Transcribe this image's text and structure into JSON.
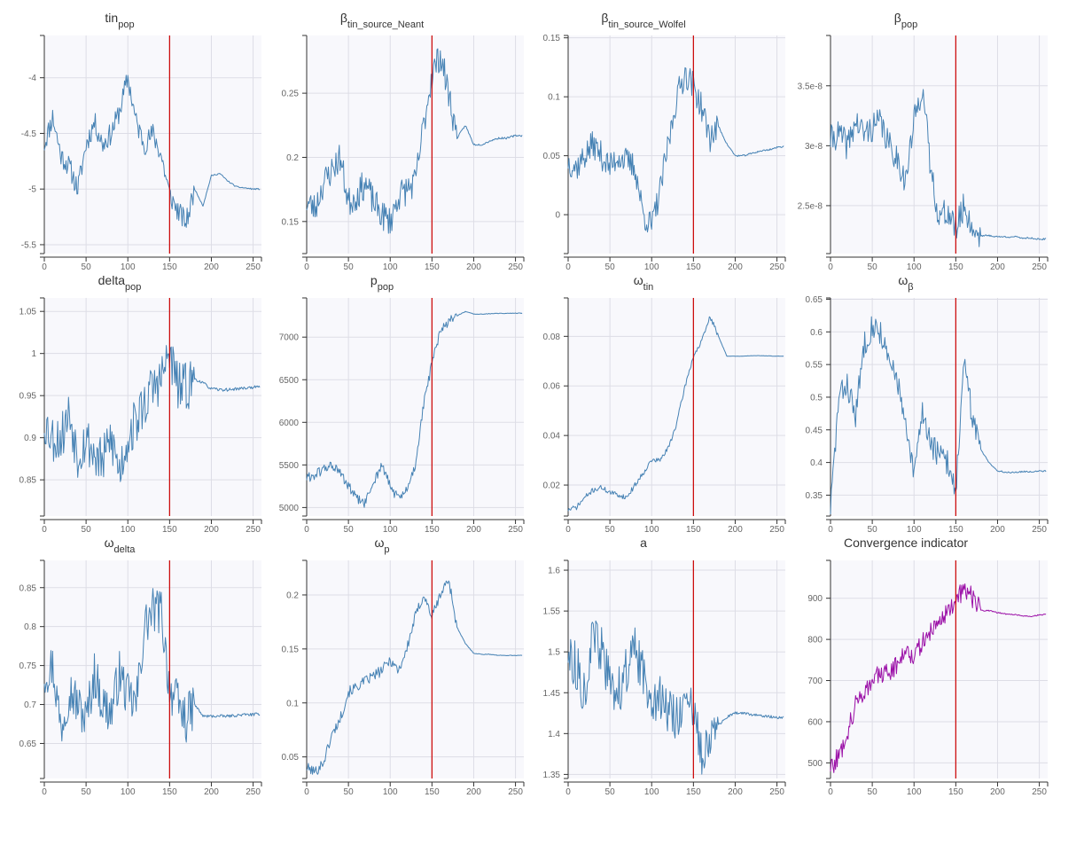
{
  "colors": {
    "series": "#4682b4",
    "convergence": "#9b0fa7",
    "marker": "#cc0000",
    "plot_bg": "#f8f8fc",
    "grid": "#dddde6"
  },
  "chart_data": [
    {
      "type": "line",
      "title": {
        "main": "tin",
        "sub": "pop"
      },
      "xlim": [
        0,
        260
      ],
      "ylim": [
        -5.58,
        -3.62
      ],
      "yticks": [
        -5.5,
        -5,
        -4.5,
        -4
      ],
      "ytick_labels": [
        "-5.5",
        "-5",
        "-4.5",
        "-4"
      ],
      "xticks": [
        0,
        50,
        100,
        150,
        200,
        250
      ],
      "xtick_labels": [
        "0",
        "50",
        "100",
        "150",
        "200",
        "250"
      ],
      "marker_x": 150,
      "noise": 0.1,
      "seed": 11,
      "x": [
        0,
        10,
        20,
        30,
        40,
        50,
        60,
        70,
        80,
        90,
        100,
        110,
        120,
        130,
        140,
        150,
        160,
        170,
        180,
        190,
        200,
        210,
        220,
        230,
        240,
        250,
        258
      ],
      "y": [
        -4.6,
        -4.35,
        -4.7,
        -4.8,
        -5.0,
        -4.6,
        -4.4,
        -4.6,
        -4.5,
        -4.3,
        -4.0,
        -4.4,
        -4.6,
        -4.5,
        -4.7,
        -5.05,
        -5.2,
        -5.3,
        -5.0,
        -5.15,
        -4.88,
        -4.86,
        -4.93,
        -4.98,
        -4.99,
        -5.0,
        -5.0
      ]
    },
    {
      "type": "line",
      "title": {
        "main": "β",
        "sub": "tin_source_Neant"
      },
      "xlim": [
        0,
        260
      ],
      "ylim": [
        0.125,
        0.295
      ],
      "yticks": [
        0.15,
        0.2,
        0.25
      ],
      "ytick_labels": [
        "0.15",
        "0.2",
        "0.25"
      ],
      "xticks": [
        0,
        50,
        100,
        150,
        200,
        250
      ],
      "xtick_labels": [
        "0",
        "50",
        "100",
        "150",
        "200",
        "250"
      ],
      "marker_x": 150,
      "noise": 0.012,
      "seed": 23,
      "x": [
        0,
        10,
        20,
        30,
        40,
        50,
        60,
        70,
        80,
        90,
        100,
        110,
        120,
        130,
        140,
        150,
        160,
        170,
        180,
        190,
        200,
        210,
        220,
        230,
        240,
        250,
        258
      ],
      "y": [
        0.165,
        0.16,
        0.18,
        0.19,
        0.2,
        0.165,
        0.17,
        0.18,
        0.165,
        0.155,
        0.15,
        0.17,
        0.175,
        0.18,
        0.225,
        0.265,
        0.28,
        0.25,
        0.215,
        0.225,
        0.21,
        0.21,
        0.213,
        0.215,
        0.215,
        0.217,
        0.217
      ]
    },
    {
      "type": "line",
      "title": {
        "main": "β",
        "sub": "tin_source_Wolfel"
      },
      "xlim": [
        0,
        260
      ],
      "ylim": [
        -0.033,
        0.152
      ],
      "yticks": [
        0,
        0.05,
        0.1,
        0.15
      ],
      "ytick_labels": [
        "0",
        "0.05",
        "0.1",
        "0.15"
      ],
      "xticks": [
        0,
        50,
        100,
        150,
        200,
        250
      ],
      "xtick_labels": [
        "0",
        "50",
        "100",
        "150",
        "200",
        "250"
      ],
      "marker_x": 150,
      "noise": 0.012,
      "seed": 37,
      "x": [
        0,
        10,
        20,
        30,
        40,
        50,
        60,
        70,
        80,
        90,
        100,
        110,
        120,
        130,
        140,
        150,
        160,
        170,
        180,
        190,
        200,
        210,
        220,
        230,
        240,
        250,
        258
      ],
      "y": [
        0.045,
        0.04,
        0.05,
        0.06,
        0.05,
        0.04,
        0.05,
        0.045,
        0.04,
        0.0,
        -0.01,
        0.02,
        0.06,
        0.1,
        0.12,
        0.11,
        0.09,
        0.065,
        0.075,
        0.06,
        0.05,
        0.05,
        0.052,
        0.054,
        0.055,
        0.057,
        0.058
      ]
    },
    {
      "type": "line",
      "title": {
        "main": "β",
        "sub": "pop"
      },
      "xlim": [
        0,
        260
      ],
      "ylim": [
        2.1e-08,
        3.92e-08
      ],
      "yticks": [
        2.5e-08,
        3e-08,
        3.5e-08
      ],
      "ytick_labels": [
        "2.5e-8",
        "3e-8",
        "3.5e-8"
      ],
      "xticks": [
        0,
        50,
        100,
        150,
        200,
        250
      ],
      "xtick_labels": [
        "0",
        "50",
        "100",
        "150",
        "200",
        "250"
      ],
      "marker_x": 150,
      "noise": 1.2e-09,
      "seed": 41,
      "x": [
        0,
        10,
        20,
        30,
        40,
        50,
        60,
        70,
        80,
        90,
        100,
        110,
        120,
        130,
        140,
        150,
        160,
        170,
        180,
        190,
        200,
        210,
        220,
        230,
        240,
        250,
        258
      ],
      "y": [
        3.05e-08,
        3.1e-08,
        3e-08,
        3.2e-08,
        3.1e-08,
        3.15e-08,
        3.2e-08,
        3e-08,
        2.9e-08,
        2.7e-08,
        3.2e-08,
        3.5e-08,
        2.8e-08,
        2.4e-08,
        2.45e-08,
        2.3e-08,
        2.5e-08,
        2.3e-08,
        2.25e-08,
        2.25e-08,
        2.24e-08,
        2.24e-08,
        2.24e-08,
        2.23e-08,
        2.23e-08,
        2.22e-08,
        2.22e-08
      ]
    },
    {
      "type": "line",
      "title": {
        "main": "delta",
        "sub": "pop"
      },
      "xlim": [
        0,
        260
      ],
      "ylim": [
        0.807,
        1.066
      ],
      "yticks": [
        0.85,
        0.9,
        0.95,
        1,
        1.05
      ],
      "ytick_labels": [
        "0.85",
        "0.9",
        "0.95",
        "1",
        "1.05"
      ],
      "xticks": [
        0,
        50,
        100,
        150,
        200,
        250
      ],
      "xtick_labels": [
        "0",
        "50",
        "100",
        "150",
        "200",
        "250"
      ],
      "marker_x": 150,
      "noise": 0.03,
      "seed": 53,
      "x": [
        0,
        10,
        20,
        30,
        40,
        50,
        60,
        70,
        80,
        90,
        100,
        110,
        120,
        130,
        140,
        150,
        160,
        170,
        180,
        190,
        200,
        210,
        220,
        230,
        240,
        250,
        258
      ],
      "y": [
        0.92,
        0.9,
        0.9,
        0.93,
        0.88,
        0.9,
        0.88,
        0.87,
        0.9,
        0.86,
        0.9,
        0.92,
        0.94,
        0.96,
        0.97,
        1.0,
        0.96,
        0.96,
        0.97,
        0.965,
        0.958,
        0.957,
        0.957,
        0.958,
        0.959,
        0.96,
        0.96
      ]
    },
    {
      "type": "line",
      "title": {
        "main": "p",
        "sub": "pop"
      },
      "xlim": [
        0,
        260
      ],
      "ylim": [
        4900,
        7460
      ],
      "yticks": [
        5000,
        5500,
        6000,
        6500,
        7000
      ],
      "ytick_labels": [
        "5000",
        "5500",
        "6000",
        "6500",
        "7000"
      ],
      "xticks": [
        0,
        50,
        100,
        150,
        200,
        250
      ],
      "xtick_labels": [
        "0",
        "50",
        "100",
        "150",
        "200",
        "250"
      ],
      "marker_x": 150,
      "noise": 60,
      "seed": 61,
      "x": [
        0,
        10,
        20,
        30,
        40,
        50,
        60,
        70,
        80,
        90,
        100,
        110,
        120,
        130,
        140,
        150,
        160,
        170,
        180,
        190,
        200,
        210,
        220,
        230,
        240,
        250,
        258
      ],
      "y": [
        5350,
        5380,
        5450,
        5500,
        5400,
        5250,
        5100,
        5050,
        5300,
        5500,
        5250,
        5100,
        5200,
        5500,
        6200,
        6700,
        7050,
        7200,
        7250,
        7300,
        7270,
        7270,
        7275,
        7278,
        7280,
        7280,
        7280
      ]
    },
    {
      "type": "line",
      "title": {
        "main": "ω",
        "sub": "tin"
      },
      "xlim": [
        0,
        260
      ],
      "ylim": [
        0.0075,
        0.0955
      ],
      "yticks": [
        0.02,
        0.04,
        0.06,
        0.08
      ],
      "ytick_labels": [
        "0.02",
        "0.04",
        "0.06",
        "0.08"
      ],
      "xticks": [
        0,
        50,
        100,
        150,
        200,
        250
      ],
      "xtick_labels": [
        "0",
        "50",
        "100",
        "150",
        "200",
        "250"
      ],
      "marker_x": 150,
      "noise": 0.001,
      "seed": 71,
      "x": [
        0,
        10,
        20,
        30,
        40,
        50,
        60,
        70,
        80,
        90,
        100,
        110,
        120,
        130,
        140,
        150,
        160,
        170,
        180,
        190,
        200,
        210,
        220,
        230,
        240,
        250,
        258
      ],
      "y": [
        0.01,
        0.011,
        0.015,
        0.018,
        0.019,
        0.017,
        0.016,
        0.015,
        0.02,
        0.025,
        0.03,
        0.03,
        0.035,
        0.045,
        0.06,
        0.072,
        0.078,
        0.088,
        0.08,
        0.072,
        0.072,
        0.072,
        0.0722,
        0.0722,
        0.0721,
        0.072,
        0.072
      ]
    },
    {
      "type": "line",
      "title": {
        "main": "ω",
        "sub": "β"
      },
      "xlim": [
        0,
        260
      ],
      "ylim": [
        0.318,
        0.652
      ],
      "yticks": [
        0.35,
        0.4,
        0.45,
        0.5,
        0.55,
        0.6,
        0.65
      ],
      "ytick_labels": [
        "0.35",
        "0.4",
        "0.45",
        "0.5",
        "0.55",
        "0.6",
        "0.65"
      ],
      "xticks": [
        0,
        50,
        100,
        150,
        200,
        250
      ],
      "xtick_labels": [
        "0",
        "50",
        "100",
        "150",
        "200",
        "250"
      ],
      "marker_x": 150,
      "noise": 0.02,
      "seed": 83,
      "x": [
        0,
        10,
        20,
        30,
        40,
        50,
        60,
        70,
        80,
        90,
        100,
        110,
        120,
        130,
        140,
        150,
        160,
        170,
        180,
        190,
        200,
        210,
        220,
        230,
        240,
        250,
        258
      ],
      "y": [
        0.33,
        0.5,
        0.52,
        0.47,
        0.58,
        0.61,
        0.6,
        0.55,
        0.53,
        0.45,
        0.38,
        0.48,
        0.43,
        0.41,
        0.4,
        0.36,
        0.55,
        0.47,
        0.42,
        0.4,
        0.387,
        0.385,
        0.385,
        0.386,
        0.386,
        0.387,
        0.387
      ]
    },
    {
      "type": "line",
      "title": {
        "main": "ω",
        "sub": "delta"
      },
      "xlim": [
        0,
        260
      ],
      "ylim": [
        0.605,
        0.885
      ],
      "yticks": [
        0.65,
        0.7,
        0.75,
        0.8,
        0.85
      ],
      "ytick_labels": [
        "0.65",
        "0.7",
        "0.75",
        "0.8",
        "0.85"
      ],
      "xticks": [
        0,
        50,
        100,
        150,
        200,
        250
      ],
      "xtick_labels": [
        "0",
        "50",
        "100",
        "150",
        "200",
        "250"
      ],
      "marker_x": 150,
      "noise": 0.03,
      "seed": 97,
      "x": [
        0,
        10,
        20,
        30,
        40,
        50,
        60,
        70,
        80,
        90,
        100,
        110,
        120,
        130,
        140,
        150,
        160,
        170,
        180,
        190,
        200,
        210,
        220,
        230,
        240,
        250,
        258
      ],
      "y": [
        0.74,
        0.75,
        0.67,
        0.72,
        0.7,
        0.68,
        0.74,
        0.7,
        0.69,
        0.74,
        0.71,
        0.7,
        0.8,
        0.82,
        0.82,
        0.72,
        0.7,
        0.68,
        0.7,
        0.685,
        0.685,
        0.685,
        0.685,
        0.686,
        0.687,
        0.687,
        0.688
      ]
    },
    {
      "type": "line",
      "title": {
        "main": "ω",
        "sub": "p"
      },
      "xlim": [
        0,
        260
      ],
      "ylim": [
        0.03,
        0.232
      ],
      "yticks": [
        0.05,
        0.1,
        0.15,
        0.2
      ],
      "ytick_labels": [
        "0.05",
        "0.1",
        "0.15",
        "0.2"
      ],
      "xticks": [
        0,
        50,
        100,
        150,
        200,
        250
      ],
      "xtick_labels": [
        "0",
        "50",
        "100",
        "150",
        "200",
        "250"
      ],
      "marker_x": 150,
      "noise": 0.005,
      "seed": 101,
      "x": [
        0,
        10,
        20,
        30,
        40,
        50,
        60,
        70,
        80,
        90,
        100,
        110,
        120,
        130,
        140,
        150,
        160,
        170,
        180,
        190,
        200,
        210,
        220,
        230,
        240,
        250,
        258
      ],
      "y": [
        0.04,
        0.036,
        0.045,
        0.07,
        0.085,
        0.11,
        0.115,
        0.12,
        0.125,
        0.13,
        0.14,
        0.13,
        0.15,
        0.18,
        0.2,
        0.18,
        0.2,
        0.215,
        0.17,
        0.155,
        0.146,
        0.145,
        0.145,
        0.144,
        0.144,
        0.144,
        0.144
      ]
    },
    {
      "type": "line",
      "title": {
        "main": "a",
        "sub": ""
      },
      "xlim": [
        0,
        260
      ],
      "ylim": [
        1.345,
        1.612
      ],
      "yticks": [
        1.35,
        1.4,
        1.45,
        1.5,
        1.55,
        1.6
      ],
      "ytick_labels": [
        "1.35",
        "1.4",
        "1.45",
        "1.5",
        "1.55",
        "1.6"
      ],
      "xticks": [
        0,
        50,
        100,
        150,
        200,
        250
      ],
      "xtick_labels": [
        "0",
        "50",
        "100",
        "150",
        "200",
        "250"
      ],
      "marker_x": 150,
      "noise": 0.03,
      "seed": 113,
      "x": [
        0,
        10,
        20,
        30,
        40,
        50,
        60,
        70,
        80,
        90,
        100,
        110,
        120,
        130,
        140,
        150,
        160,
        170,
        180,
        190,
        200,
        210,
        220,
        230,
        240,
        250,
        258
      ],
      "y": [
        1.5,
        1.48,
        1.45,
        1.52,
        1.5,
        1.46,
        1.45,
        1.48,
        1.5,
        1.47,
        1.45,
        1.44,
        1.43,
        1.42,
        1.44,
        1.42,
        1.38,
        1.4,
        1.41,
        1.42,
        1.425,
        1.425,
        1.423,
        1.422,
        1.421,
        1.42,
        1.42
      ]
    },
    {
      "type": "line",
      "title": {
        "main": "Convergence indicator",
        "sub": ""
      },
      "xlim": [
        0,
        260
      ],
      "ylim": [
        462,
        992
      ],
      "yticks": [
        500,
        600,
        700,
        800,
        900
      ],
      "ytick_labels": [
        "500",
        "600",
        "700",
        "800",
        "900"
      ],
      "xticks": [
        0,
        50,
        100,
        150,
        200,
        250
      ],
      "xtick_labels": [
        "0",
        "50",
        "100",
        "150",
        "200",
        "250"
      ],
      "marker_x": 150,
      "noise": 25,
      "seed": 127,
      "accent": "convergence",
      "x": [
        0,
        10,
        20,
        30,
        40,
        50,
        60,
        70,
        80,
        90,
        100,
        110,
        120,
        130,
        140,
        150,
        160,
        170,
        180,
        190,
        200,
        210,
        220,
        230,
        240,
        250,
        258
      ],
      "y": [
        490,
        515,
        575,
        640,
        675,
        700,
        715,
        720,
        740,
        780,
        760,
        790,
        820,
        845,
        870,
        890,
        925,
        900,
        870,
        870,
        865,
        862,
        860,
        858,
        855,
        860,
        860
      ]
    }
  ]
}
